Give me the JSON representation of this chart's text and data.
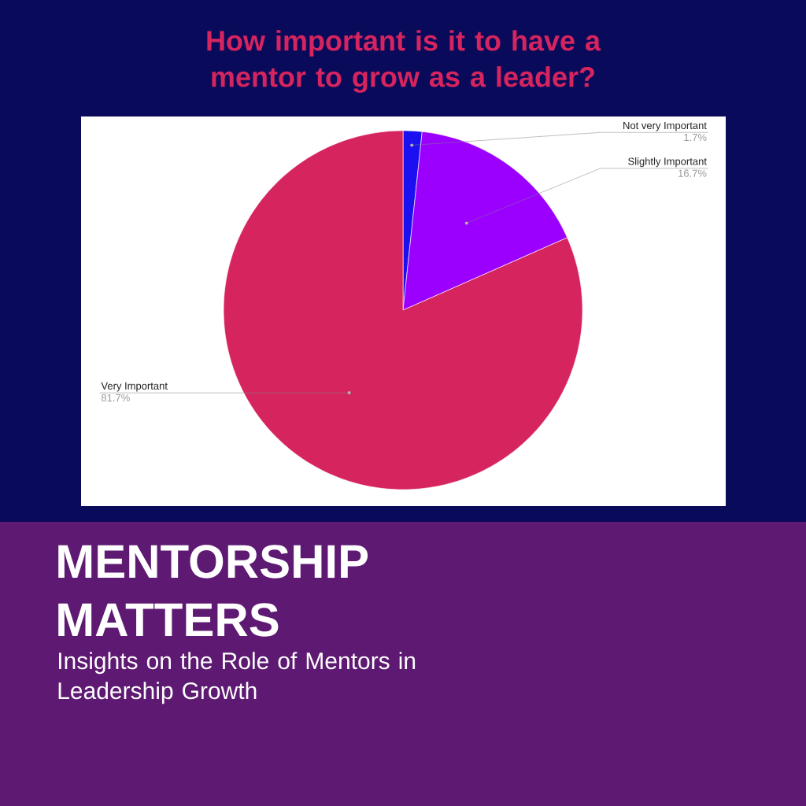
{
  "chart_data": {
    "type": "pie",
    "title": "How important is it to have a mentor to grow as a leader?",
    "categories": [
      "Not very Important",
      "Slightly Important",
      "Very Important"
    ],
    "values": [
      1.7,
      16.7,
      81.7
    ],
    "value_labels": [
      "1.7%",
      "16.7%",
      "81.7%"
    ],
    "colors": [
      "#1a10f0",
      "#9b00ff",
      "#d6245f"
    ],
    "annotations": [
      "MENTORSHIP MATTERS",
      "Insights on the Role of Mentors in Leadership Growth"
    ]
  }
}
